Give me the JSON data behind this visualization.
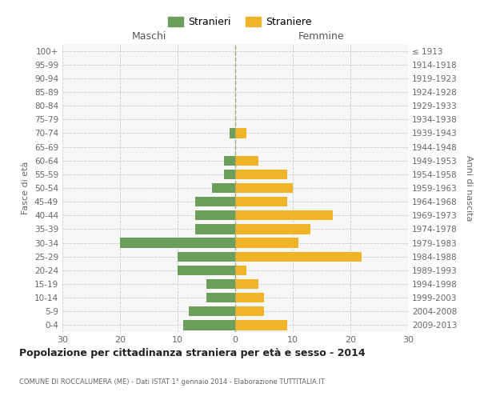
{
  "age_groups": [
    "0-4",
    "5-9",
    "10-14",
    "15-19",
    "20-24",
    "25-29",
    "30-34",
    "35-39",
    "40-44",
    "45-49",
    "50-54",
    "55-59",
    "60-64",
    "65-69",
    "70-74",
    "75-79",
    "80-84",
    "85-89",
    "90-94",
    "95-99",
    "100+"
  ],
  "birth_years": [
    "2009-2013",
    "2004-2008",
    "1999-2003",
    "1994-1998",
    "1989-1993",
    "1984-1988",
    "1979-1983",
    "1974-1978",
    "1969-1973",
    "1964-1968",
    "1959-1963",
    "1954-1958",
    "1949-1953",
    "1944-1948",
    "1939-1943",
    "1934-1938",
    "1929-1933",
    "1924-1928",
    "1919-1923",
    "1914-1918",
    "≤ 1913"
  ],
  "maschi": [
    9,
    8,
    5,
    5,
    10,
    10,
    20,
    7,
    7,
    7,
    4,
    2,
    2,
    0,
    1,
    0,
    0,
    0,
    0,
    0,
    0
  ],
  "femmine": [
    9,
    5,
    5,
    4,
    2,
    22,
    11,
    13,
    17,
    9,
    10,
    9,
    4,
    0,
    2,
    0,
    0,
    0,
    0,
    0,
    0
  ],
  "male_color": "#6a9e5a",
  "female_color": "#f0b429",
  "background_color": "#ffffff",
  "plot_bg_color": "#f7f7f7",
  "grid_color": "#cccccc",
  "title": "Popolazione per cittadinanza straniera per età e sesso - 2014",
  "subtitle": "COMUNE DI ROCCALUMERA (ME) - Dati ISTAT 1° gennaio 2014 - Elaborazione TUTTITALIA.IT",
  "xlabel_left": "Maschi",
  "xlabel_right": "Femmine",
  "ylabel_left": "Fasce di età",
  "ylabel_right": "Anni di nascita",
  "legend_male": "Stranieri",
  "legend_female": "Straniere",
  "xlim": 30,
  "bar_height": 0.72
}
